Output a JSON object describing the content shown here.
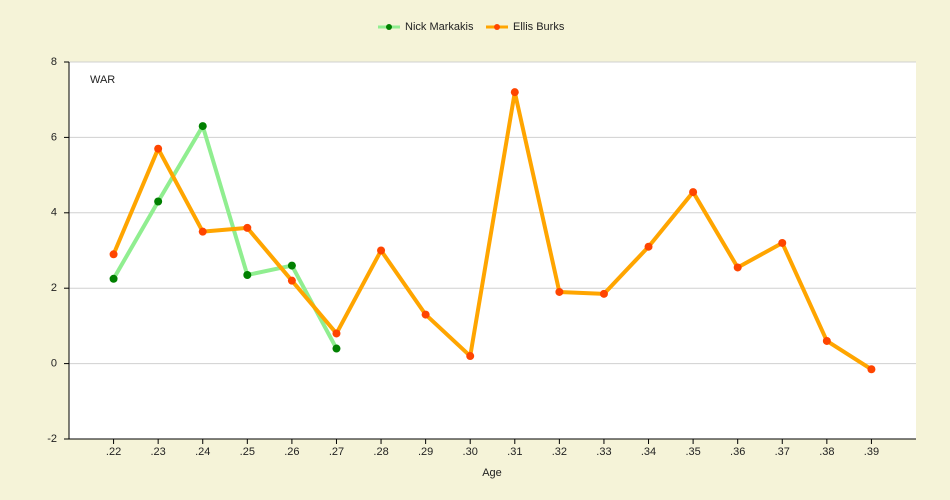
{
  "chart_data": {
    "type": "line",
    "categories": [
      ".22",
      ".23",
      ".24",
      ".25",
      ".26",
      ".27",
      ".28",
      ".29",
      ".30",
      ".31",
      ".32",
      ".33",
      ".34",
      ".35",
      ".36",
      ".37",
      ".38",
      ".39"
    ],
    "series": [
      {
        "name": "Nick Markakis",
        "color": "#90ee90",
        "marker_color": "#008000",
        "values": [
          2.25,
          4.3,
          6.3,
          2.35,
          2.6,
          0.4,
          null,
          null,
          null,
          null,
          null,
          null,
          null,
          null,
          null,
          null,
          null,
          null
        ]
      },
      {
        "name": "Ellis Burks",
        "color": "#ffa500",
        "marker_color": "#ff4500",
        "values": [
          2.9,
          5.7,
          3.5,
          3.6,
          2.2,
          0.8,
          3.0,
          1.3,
          0.2,
          7.2,
          1.9,
          1.85,
          3.1,
          4.55,
          2.55,
          3.2,
          0.6,
          -0.15
        ]
      }
    ],
    "ylabel": "WAR",
    "xlabel": "Age",
    "ylim": [
      -2,
      8
    ],
    "yticks": [
      -2,
      0,
      2,
      4,
      6,
      8
    ],
    "grid": true,
    "legend": "top"
  }
}
